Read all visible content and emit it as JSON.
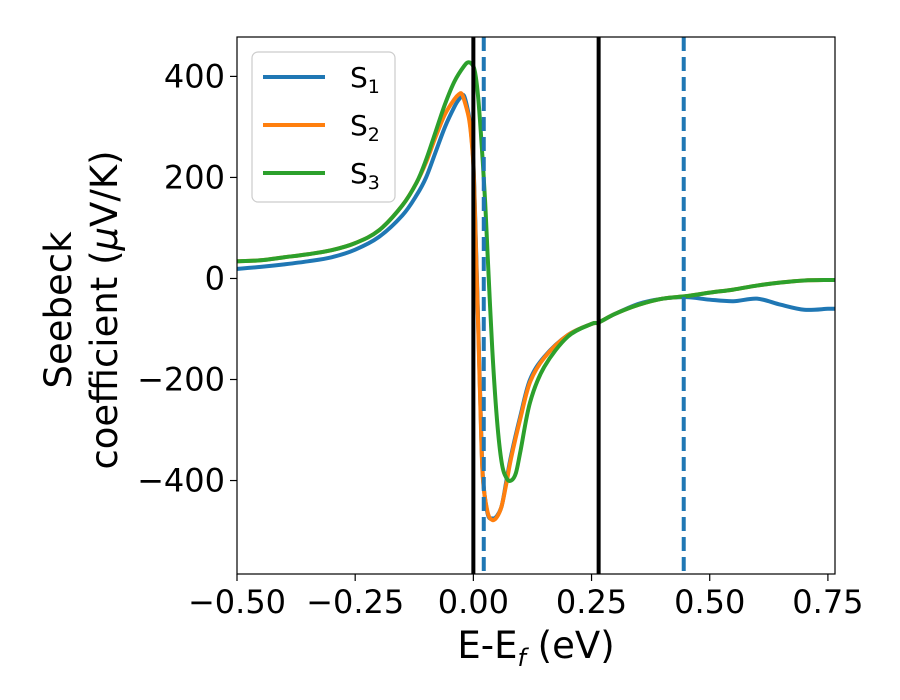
{
  "chart_data": {
    "type": "line",
    "title": "",
    "xlabel": {
      "base": "E-E",
      "sub": "f",
      "tail": " (eV)"
    },
    "ylabel": {
      "line1": "Seebeck",
      "line2_pre": "coefficient  (",
      "line2_mu": "μ",
      "line2_post": "V/K)"
    },
    "xlim": [
      -0.5,
      0.765
    ],
    "ylim": [
      -585,
      478
    ],
    "xticks": [
      {
        "value": -0.5,
        "label": "−0.50"
      },
      {
        "value": -0.25,
        "label": "−0.25"
      },
      {
        "value": 0.0,
        "label": "0.00"
      },
      {
        "value": 0.25,
        "label": "0.25"
      },
      {
        "value": 0.5,
        "label": "0.50"
      },
      {
        "value": 0.75,
        "label": "0.75"
      }
    ],
    "yticks": [
      {
        "value": 400,
        "label": "400"
      },
      {
        "value": 200,
        "label": "200"
      },
      {
        "value": 0,
        "label": "0"
      },
      {
        "value": -200,
        "label": "−200"
      },
      {
        "value": -400,
        "label": "−400"
      }
    ],
    "grid": false,
    "legend_position": "top-left",
    "series": [
      {
        "name": "S",
        "sub": "1",
        "color": "#1f77b4",
        "x": [
          -0.5,
          -0.45,
          -0.4,
          -0.35,
          -0.3,
          -0.25,
          -0.2,
          -0.15,
          -0.12,
          -0.1,
          -0.08,
          -0.06,
          -0.04,
          -0.03,
          -0.02,
          -0.01,
          -0.005,
          0.0,
          0.003,
          0.006,
          0.01,
          0.015,
          0.02,
          0.03,
          0.04,
          0.05,
          0.06,
          0.07,
          0.08,
          0.1,
          0.12,
          0.15,
          0.2,
          0.25,
          0.265,
          0.3,
          0.35,
          0.4,
          0.45,
          0.5,
          0.55,
          0.6,
          0.65,
          0.7,
          0.75,
          0.765
        ],
        "y": [
          19,
          23,
          28,
          34,
          42,
          57,
          82,
          125,
          165,
          200,
          250,
          300,
          340,
          355,
          362,
          325,
          290,
          230,
          150,
          50,
          -80,
          -250,
          -390,
          -465,
          -475,
          -470,
          -450,
          -400,
          -350,
          -270,
          -200,
          -155,
          -112,
          -90,
          -87,
          -70,
          -50,
          -40,
          -37,
          -42,
          -45,
          -40,
          -52,
          -62,
          -60,
          -60
        ]
      },
      {
        "name": "S",
        "sub": "2",
        "color": "#ff7f0e",
        "x": [
          -0.5,
          -0.45,
          -0.4,
          -0.35,
          -0.3,
          -0.25,
          -0.2,
          -0.15,
          -0.12,
          -0.1,
          -0.08,
          -0.06,
          -0.04,
          -0.03,
          -0.025,
          -0.02,
          -0.01,
          -0.005,
          0.0,
          0.003,
          0.006,
          0.01,
          0.015,
          0.02,
          0.03,
          0.04,
          0.05,
          0.06,
          0.07,
          0.08,
          0.1,
          0.12,
          0.15,
          0.2,
          0.25,
          0.265,
          0.3,
          0.35,
          0.4,
          0.45,
          0.5,
          0.55,
          0.6,
          0.65,
          0.7,
          0.75,
          0.765
        ],
        "y": [
          34,
          36,
          42,
          48,
          56,
          70,
          95,
          145,
          190,
          230,
          280,
          325,
          355,
          365,
          366,
          355,
          320,
          285,
          225,
          140,
          40,
          -90,
          -260,
          -395,
          -462,
          -478,
          -472,
          -450,
          -405,
          -355,
          -275,
          -205,
          -157,
          -112,
          -90,
          -87,
          -70,
          -52,
          -40,
          -35,
          -28,
          -22,
          -14,
          -8,
          -4,
          -3,
          -3
        ]
      },
      {
        "name": "S",
        "sub": "3",
        "color": "#2ca02c",
        "x": [
          -0.5,
          -0.45,
          -0.4,
          -0.35,
          -0.3,
          -0.25,
          -0.2,
          -0.15,
          -0.12,
          -0.1,
          -0.08,
          -0.06,
          -0.04,
          -0.02,
          -0.01,
          0.0,
          0.005,
          0.01,
          0.015,
          0.02,
          0.025,
          0.03,
          0.04,
          0.05,
          0.06,
          0.07,
          0.08,
          0.09,
          0.1,
          0.12,
          0.15,
          0.2,
          0.25,
          0.265,
          0.3,
          0.35,
          0.4,
          0.45,
          0.5,
          0.55,
          0.6,
          0.65,
          0.7,
          0.75,
          0.765
        ],
        "y": [
          34,
          36,
          42,
          48,
          56,
          70,
          95,
          145,
          190,
          235,
          290,
          345,
          390,
          420,
          428,
          420,
          400,
          360,
          300,
          230,
          150,
          50,
          -140,
          -280,
          -365,
          -395,
          -400,
          -385,
          -340,
          -245,
          -175,
          -115,
          -90,
          -87,
          -70,
          -52,
          -40,
          -35,
          -28,
          -22,
          -14,
          -8,
          -4,
          -3,
          -3
        ]
      }
    ],
    "vlines": [
      {
        "x": 0.0,
        "style": "solid",
        "color": "#000000"
      },
      {
        "x": 0.265,
        "style": "solid",
        "color": "#000000"
      },
      {
        "x": 0.022,
        "style": "dashed",
        "color": "#1f77b4"
      },
      {
        "x": 0.445,
        "style": "dashed",
        "color": "#1f77b4"
      }
    ]
  }
}
